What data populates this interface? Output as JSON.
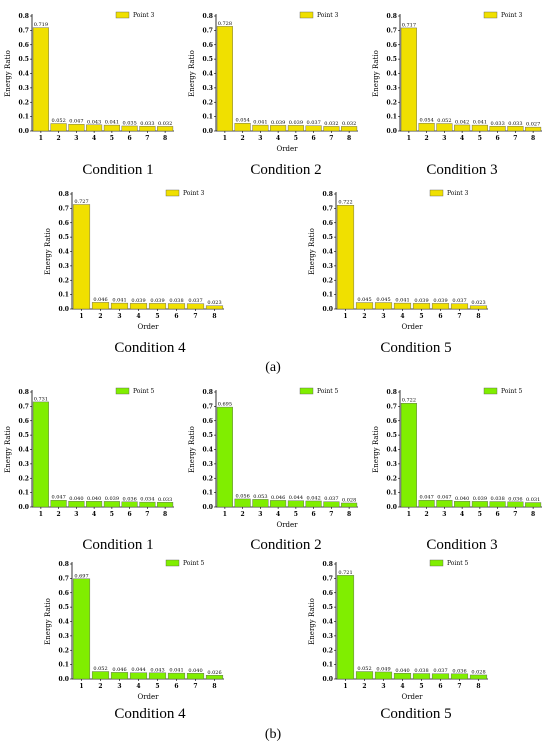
{
  "colors": {
    "yellow": "#f0e000",
    "green": "#80ee00"
  },
  "part_labels": {
    "a": "(a)",
    "b": "(b)"
  },
  "chart_data": [
    {
      "id": "a1",
      "type": "bar",
      "group": "a",
      "color": "yellow",
      "condition": "Condition 1",
      "legend": "Point 3",
      "xlabel": "",
      "ylabel": "Energy Ratio",
      "ylim": [
        0,
        0.8
      ],
      "yticks": [
        "0.0",
        "0.1",
        "0.2",
        "0.3",
        "0.4",
        "0.5",
        "0.6",
        "0.7",
        "0.8"
      ],
      "categories": [
        "1",
        "2",
        "3",
        "4",
        "5",
        "6",
        "7",
        "8"
      ],
      "values": [
        0.719,
        0.052,
        0.047,
        0.043,
        0.041,
        0.035,
        0.033,
        0.032
      ],
      "labels": [
        "0.719",
        "0.052",
        "0.047",
        "0.043",
        "0.041",
        "0.035",
        "0.033",
        "0.032"
      ]
    },
    {
      "id": "a2",
      "type": "bar",
      "group": "a",
      "color": "yellow",
      "condition": "Condition 2",
      "legend": "Point 3",
      "xlabel": "Order",
      "ylabel": "Energy Ratio",
      "ylim": [
        0,
        0.8
      ],
      "yticks": [
        "0.0",
        "0.1",
        "0.2",
        "0.3",
        "0.4",
        "0.5",
        "0.6",
        "0.7",
        "0.8"
      ],
      "categories": [
        "1",
        "2",
        "3",
        "4",
        "5",
        "6",
        "7",
        "8"
      ],
      "values": [
        0.728,
        0.054,
        0.041,
        0.039,
        0.039,
        0.037,
        0.032,
        0.032
      ],
      "labels": [
        "0.728",
        "0.054",
        "0.041",
        "0.039",
        "0.039",
        "0.037",
        "0.032",
        "0.032"
      ]
    },
    {
      "id": "a3",
      "type": "bar",
      "group": "a",
      "color": "yellow",
      "condition": "Condition 3",
      "legend": "Point 3",
      "xlabel": "",
      "ylabel": "Energy Ratio",
      "ylim": [
        0,
        0.8
      ],
      "yticks": [
        "0.0",
        "0.1",
        "0.2",
        "0.3",
        "0.4",
        "0.5",
        "0.6",
        "0.7",
        "0.8"
      ],
      "categories": [
        "1",
        "2",
        "3",
        "4",
        "5",
        "6",
        "7",
        "8"
      ],
      "values": [
        0.717,
        0.054,
        0.052,
        0.042,
        0.041,
        0.033,
        0.033,
        0.027
      ],
      "labels": [
        "0.717",
        "0.054",
        "0.052",
        "0.042",
        "0.041",
        "0.033",
        "0.033",
        "0.027"
      ]
    },
    {
      "id": "a4",
      "type": "bar",
      "group": "a",
      "color": "yellow",
      "condition": "Condition 4",
      "legend": "Point 3",
      "xlabel": "Order",
      "ylabel": "Energy Ratio",
      "ylim": [
        0,
        0.8
      ],
      "yticks": [
        "0.0",
        "0.1",
        "0.2",
        "0.3",
        "0.4",
        "0.5",
        "0.6",
        "0.7",
        "0.8"
      ],
      "categories": [
        "1",
        "2",
        "3",
        "4",
        "5",
        "6",
        "7",
        "8"
      ],
      "values": [
        0.727,
        0.046,
        0.041,
        0.039,
        0.039,
        0.038,
        0.037,
        0.023
      ],
      "labels": [
        "0.727",
        "0.046",
        "0.041",
        "0.039",
        "0.039",
        "0.038",
        "0.037",
        "0.023"
      ]
    },
    {
      "id": "a5",
      "type": "bar",
      "group": "a",
      "color": "yellow",
      "condition": "Condition 5",
      "legend": "Point 3",
      "xlabel": "Order",
      "ylabel": "Energy Ratio",
      "ylim": [
        0,
        0.8
      ],
      "yticks": [
        "0.0",
        "0.1",
        "0.2",
        "0.3",
        "0.4",
        "0.5",
        "0.6",
        "0.7",
        "0.8"
      ],
      "categories": [
        "1",
        "2",
        "3",
        "4",
        "5",
        "6",
        "7",
        "8"
      ],
      "values": [
        0.722,
        0.045,
        0.045,
        0.041,
        0.039,
        0.039,
        0.037,
        0.023
      ],
      "labels": [
        "0.722",
        "0.045",
        "0.045",
        "0.041",
        "0.039",
        "0.039",
        "0.037",
        "0.023"
      ]
    },
    {
      "id": "b1",
      "type": "bar",
      "group": "b",
      "color": "green",
      "condition": "Condition 1",
      "legend": "Point 5",
      "xlabel": "",
      "ylabel": "Energy Ratio",
      "ylim": [
        0,
        0.8
      ],
      "yticks": [
        "0.0",
        "0.1",
        "0.2",
        "0.3",
        "0.4",
        "0.5",
        "0.6",
        "0.7",
        "0.8"
      ],
      "categories": [
        "1",
        "2",
        "3",
        "4",
        "5",
        "6",
        "7",
        "8"
      ],
      "values": [
        0.731,
        0.047,
        0.04,
        0.04,
        0.039,
        0.036,
        0.034,
        0.033
      ],
      "labels": [
        "0.731",
        "0.047",
        "0.040",
        "0.040",
        "0.039",
        "0.036",
        "0.034",
        "0.033"
      ]
    },
    {
      "id": "b2",
      "type": "bar",
      "group": "b",
      "color": "green",
      "condition": "Condition 2",
      "legend": "Point 5",
      "xlabel": "Order",
      "ylabel": "Energy Ratio",
      "ylim": [
        0,
        0.8
      ],
      "yticks": [
        "0.0",
        "0.1",
        "0.2",
        "0.3",
        "0.4",
        "0.5",
        "0.6",
        "0.7",
        "0.8"
      ],
      "categories": [
        "1",
        "2",
        "3",
        "4",
        "5",
        "6",
        "7",
        "8"
      ],
      "values": [
        0.695,
        0.056,
        0.053,
        0.046,
        0.044,
        0.042,
        0.037,
        0.028
      ],
      "labels": [
        "0.695",
        "0.056",
        "0.053",
        "0.046",
        "0.044",
        "0.042",
        "0.037",
        "0.028"
      ]
    },
    {
      "id": "b3",
      "type": "bar",
      "group": "b",
      "color": "green",
      "condition": "Condition 3",
      "legend": "Point 5",
      "xlabel": "",
      "ylabel": "Energy Ratio",
      "ylim": [
        0,
        0.8
      ],
      "yticks": [
        "0.0",
        "0.1",
        "0.2",
        "0.3",
        "0.4",
        "0.5",
        "0.6",
        "0.7",
        "0.8"
      ],
      "categories": [
        "1",
        "2",
        "3",
        "4",
        "5",
        "6",
        "7",
        "8"
      ],
      "values": [
        0.722,
        0.047,
        0.047,
        0.04,
        0.039,
        0.038,
        0.036,
        0.031
      ],
      "labels": [
        "0.722",
        "0.047",
        "0.047",
        "0.040",
        "0.039",
        "0.038",
        "0.036",
        "0.031"
      ]
    },
    {
      "id": "b4",
      "type": "bar",
      "group": "b",
      "color": "green",
      "condition": "Condition 4",
      "legend": "Point 5",
      "xlabel": "Order",
      "ylabel": "Energy Ratio",
      "ylim": [
        0,
        0.8
      ],
      "yticks": [
        "0.0",
        "0.1",
        "0.2",
        "0.3",
        "0.4",
        "0.5",
        "0.6",
        "0.7",
        "0.8"
      ],
      "categories": [
        "1",
        "2",
        "3",
        "4",
        "5",
        "6",
        "7",
        "8"
      ],
      "values": [
        0.697,
        0.052,
        0.046,
        0.044,
        0.043,
        0.041,
        0.04,
        0.026
      ],
      "labels": [
        "0.697",
        "0.052",
        "0.046",
        "0.044",
        "0.043",
        "0.041",
        "0.040",
        "0.026"
      ]
    },
    {
      "id": "b5",
      "type": "bar",
      "group": "b",
      "color": "green",
      "condition": "Condition 5",
      "legend": "Point 5",
      "xlabel": "Order",
      "ylabel": "Energy Ratio",
      "ylim": [
        0,
        0.8
      ],
      "yticks": [
        "0.0",
        "0.1",
        "0.2",
        "0.3",
        "0.4",
        "0.5",
        "0.6",
        "0.7",
        "0.8"
      ],
      "categories": [
        "1",
        "2",
        "3",
        "4",
        "5",
        "6",
        "7",
        "8"
      ],
      "values": [
        0.721,
        0.052,
        0.049,
        0.04,
        0.038,
        0.037,
        0.036,
        0.028
      ],
      "labels": [
        "0.721",
        "0.052",
        "0.049",
        "0.040",
        "0.038",
        "0.037",
        "0.036",
        "0.028"
      ]
    }
  ]
}
